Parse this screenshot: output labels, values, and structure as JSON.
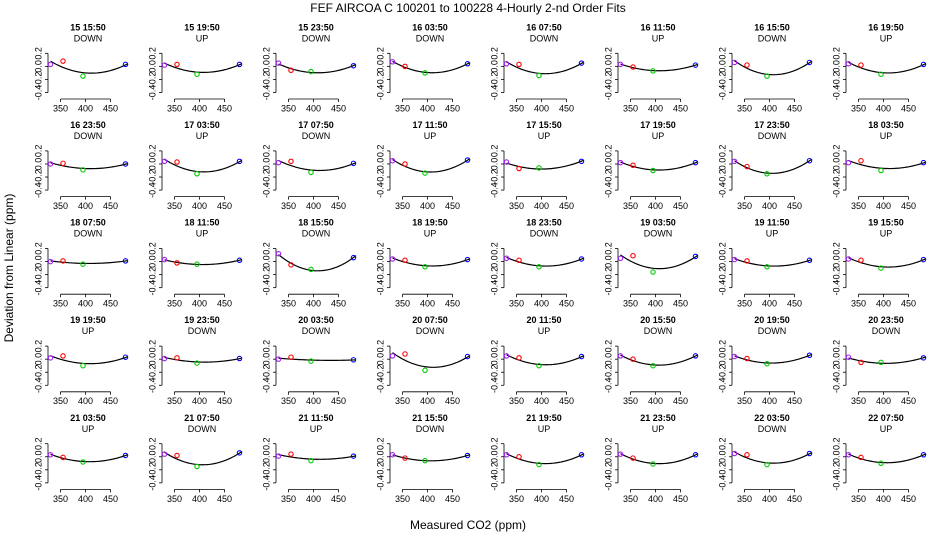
{
  "chart_data": {
    "type": "scatter",
    "title": "FEF   AIRCOA C   100201 to 100228  4-Hourly 2-nd Order Fits",
    "x_label": "Measured CO2 (ppm)",
    "y_label": "Deviation from Linear (ppm)",
    "xlim": [
      325,
      485
    ],
    "ylim": [
      -0.5,
      0.45
    ],
    "xticks": [
      350,
      400,
      450
    ],
    "yticks": [
      -0.4,
      -0.2,
      {
        "value": 0,
        "label": "0.0"
      },
      0.2
    ],
    "point_colors": [
      "#a020f0",
      "#ff0000",
      "#00cc00",
      "#0000ff"
    ],
    "curve_color": "#000000",
    "panels": [
      {
        "title": "15 15:50",
        "subtitle": "DOWN",
        "x": [
          330,
          355,
          395,
          480
        ],
        "values": [
          0.03,
          0.08,
          -0.15,
          0.03
        ]
      },
      {
        "title": "15 19:50",
        "subtitle": "UP",
        "x": [
          330,
          355,
          395,
          480
        ],
        "values": [
          0.02,
          0.03,
          -0.12,
          0.03
        ]
      },
      {
        "title": "15 23:50",
        "subtitle": "DOWN",
        "x": [
          330,
          355,
          395,
          480
        ],
        "values": [
          0.05,
          -0.06,
          -0.08,
          0.01
        ]
      },
      {
        "title": "16 03:50",
        "subtitle": "DOWN",
        "x": [
          330,
          355,
          395,
          480
        ],
        "values": [
          0.07,
          0.0,
          -0.1,
          0.04
        ]
      },
      {
        "title": "16 07:50",
        "subtitle": "DOWN",
        "x": [
          330,
          355,
          395,
          480
        ],
        "values": [
          0.04,
          0.03,
          -0.14,
          0.05
        ]
      },
      {
        "title": "16 11:50",
        "subtitle": "UP",
        "x": [
          330,
          355,
          395,
          480
        ],
        "values": [
          0.03,
          -0.01,
          -0.07,
          0.02
        ]
      },
      {
        "title": "16 15:50",
        "subtitle": "DOWN",
        "x": [
          330,
          355,
          395,
          480
        ],
        "values": [
          0.06,
          0.02,
          -0.15,
          0.06
        ]
      },
      {
        "title": "16 19:50",
        "subtitle": "UP",
        "x": [
          330,
          355,
          395,
          480
        ],
        "values": [
          0.04,
          0.02,
          -0.12,
          0.03
        ]
      },
      {
        "title": "16 23:50",
        "subtitle": "DOWN",
        "x": [
          330,
          355,
          395,
          480
        ],
        "values": [
          0.0,
          0.01,
          -0.09,
          0.0
        ]
      },
      {
        "title": "17 03:50",
        "subtitle": "UP",
        "x": [
          330,
          355,
          395,
          480
        ],
        "values": [
          0.04,
          0.03,
          -0.15,
          0.04
        ]
      },
      {
        "title": "17 07:50",
        "subtitle": "DOWN",
        "x": [
          330,
          355,
          395,
          480
        ],
        "values": [
          0.02,
          0.04,
          -0.13,
          0.01
        ]
      },
      {
        "title": "17 11:50",
        "subtitle": "UP",
        "x": [
          330,
          355,
          395,
          480
        ],
        "values": [
          0.05,
          0.0,
          -0.14,
          0.06
        ]
      },
      {
        "title": "17 15:50",
        "subtitle": "UP",
        "x": [
          330,
          355,
          395,
          480
        ],
        "values": [
          0.03,
          -0.07,
          -0.06,
          0.04
        ]
      },
      {
        "title": "17 19:50",
        "subtitle": "UP",
        "x": [
          330,
          355,
          395,
          480
        ],
        "values": [
          0.02,
          -0.02,
          -0.1,
          0.02
        ]
      },
      {
        "title": "17 23:50",
        "subtitle": "DOWN",
        "x": [
          330,
          355,
          395,
          480
        ],
        "values": [
          0.04,
          -0.04,
          -0.15,
          0.05
        ]
      },
      {
        "title": "18 03:50",
        "subtitle": "UP",
        "x": [
          330,
          355,
          395,
          480
        ],
        "values": [
          0.02,
          0.05,
          -0.1,
          0.02
        ]
      },
      {
        "title": "18 07:50",
        "subtitle": "DOWN",
        "x": [
          330,
          355,
          395,
          480
        ],
        "values": [
          0.0,
          0.01,
          -0.04,
          0.01
        ]
      },
      {
        "title": "18 11:50",
        "subtitle": "UP",
        "x": [
          330,
          355,
          395,
          480
        ],
        "values": [
          0.03,
          -0.02,
          -0.04,
          0.02
        ]
      },
      {
        "title": "18 15:50",
        "subtitle": "DOWN",
        "x": [
          330,
          355,
          395,
          480
        ],
        "values": [
          0.12,
          -0.05,
          -0.12,
          0.06
        ]
      },
      {
        "title": "18 19:50",
        "subtitle": "UP",
        "x": [
          330,
          355,
          395,
          480
        ],
        "values": [
          0.04,
          0.02,
          -0.08,
          0.03
        ]
      },
      {
        "title": "18 23:50",
        "subtitle": "DOWN",
        "x": [
          330,
          355,
          395,
          480
        ],
        "values": [
          0.05,
          0.02,
          -0.08,
          0.04
        ]
      },
      {
        "title": "19 03:50",
        "subtitle": "DOWN",
        "x": [
          330,
          355,
          395,
          480
        ],
        "values": [
          0.05,
          0.09,
          -0.16,
          0.08
        ]
      },
      {
        "title": "19 11:50",
        "subtitle": "UP",
        "x": [
          330,
          355,
          395,
          480
        ],
        "values": [
          0.03,
          0.01,
          -0.08,
          0.02
        ]
      },
      {
        "title": "19 15:50",
        "subtitle": "UP",
        "x": [
          330,
          355,
          395,
          480
        ],
        "values": [
          0.04,
          0.02,
          -0.1,
          0.03
        ]
      },
      {
        "title": "19 19:50",
        "subtitle": "UP",
        "x": [
          330,
          355,
          395,
          480
        ],
        "values": [
          0.02,
          0.05,
          -0.1,
          0.03
        ]
      },
      {
        "title": "19 23:50",
        "subtitle": "DOWN",
        "x": [
          330,
          355,
          395,
          480
        ],
        "values": [
          0.01,
          0.02,
          -0.06,
          0.01
        ]
      },
      {
        "title": "20 03:50",
        "subtitle": "DOWN",
        "x": [
          330,
          355,
          395,
          480
        ],
        "values": [
          0.0,
          0.03,
          -0.03,
          -0.01
        ]
      },
      {
        "title": "20 07:50",
        "subtitle": "DOWN",
        "x": [
          330,
          355,
          395,
          480
        ],
        "values": [
          0.05,
          0.08,
          -0.17,
          0.04
        ]
      },
      {
        "title": "20 11:50",
        "subtitle": "UP",
        "x": [
          330,
          355,
          395,
          480
        ],
        "values": [
          0.05,
          0.02,
          -0.1,
          0.04
        ]
      },
      {
        "title": "20 15:50",
        "subtitle": "DOWN",
        "x": [
          330,
          355,
          395,
          480
        ],
        "values": [
          0.05,
          0.0,
          -0.1,
          0.05
        ]
      },
      {
        "title": "20 19:50",
        "subtitle": "DOWN",
        "x": [
          330,
          355,
          395,
          480
        ],
        "values": [
          0.04,
          0.01,
          -0.07,
          0.06
        ]
      },
      {
        "title": "20 23:50",
        "subtitle": "DOWN",
        "x": [
          330,
          355,
          395,
          480
        ],
        "values": [
          0.03,
          -0.05,
          -0.05,
          0.02
        ]
      },
      {
        "title": "21 03:50",
        "subtitle": "UP",
        "x": [
          330,
          355,
          395,
          480
        ],
        "values": [
          0.03,
          -0.01,
          -0.08,
          0.02
        ]
      },
      {
        "title": "21 07:50",
        "subtitle": "DOWN",
        "x": [
          330,
          355,
          395,
          480
        ],
        "values": [
          0.04,
          0.02,
          -0.15,
          0.06
        ]
      },
      {
        "title": "21 11:50",
        "subtitle": "UP",
        "x": [
          330,
          355,
          395,
          480
        ],
        "values": [
          0.01,
          0.04,
          -0.06,
          0.01
        ]
      },
      {
        "title": "21 15:50",
        "subtitle": "DOWN",
        "x": [
          330,
          355,
          395,
          480
        ],
        "values": [
          0.03,
          -0.02,
          -0.06,
          0.02
        ]
      },
      {
        "title": "21 19:50",
        "subtitle": "UP",
        "x": [
          330,
          355,
          395,
          480
        ],
        "values": [
          0.03,
          0.0,
          -0.12,
          0.03
        ]
      },
      {
        "title": "21 23:50",
        "subtitle": "UP",
        "x": [
          330,
          355,
          395,
          480
        ],
        "values": [
          0.04,
          -0.02,
          -0.11,
          0.03
        ]
      },
      {
        "title": "22 03:50",
        "subtitle": "DOWN",
        "x": [
          330,
          355,
          395,
          480
        ],
        "values": [
          0.05,
          0.03,
          -0.12,
          0.05
        ]
      },
      {
        "title": "22 07:50",
        "subtitle": "UP",
        "x": [
          330,
          355,
          395,
          480
        ],
        "values": [
          0.03,
          -0.01,
          -0.1,
          0.03
        ]
      }
    ]
  }
}
